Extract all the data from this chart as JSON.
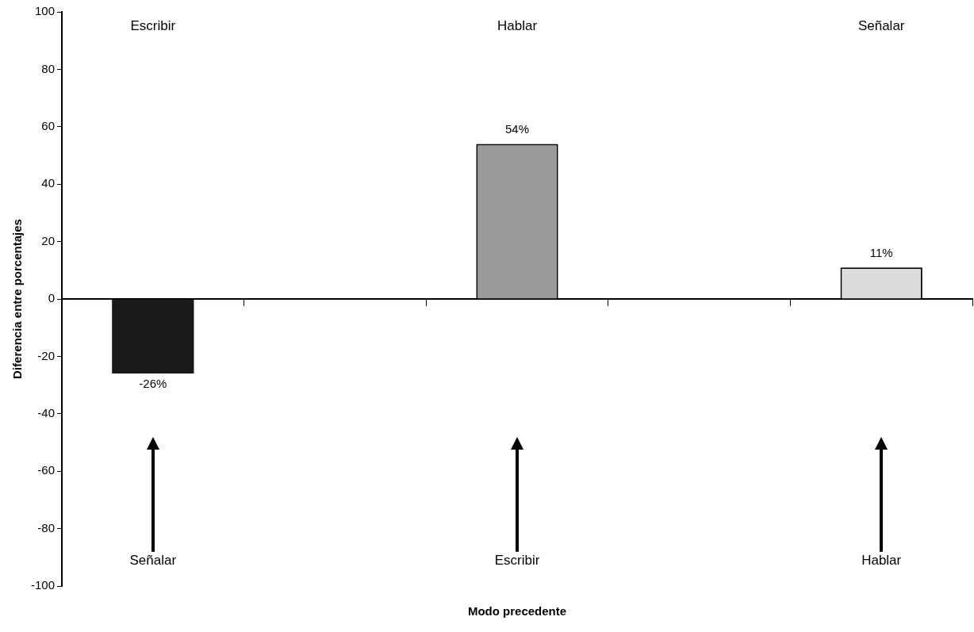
{
  "chart_data": {
    "type": "bar",
    "xlabel": "Modo precedente",
    "ylabel": "Diferencia entre porcentajes",
    "categories": [
      null,
      null,
      null,
      null,
      null
    ],
    "values": [
      -26,
      null,
      54,
      null,
      11
    ],
    "colors": [
      "#1a1a1a",
      "#ffffff",
      "#9a9a9a",
      "#ffffff",
      "#dcdcdc"
    ],
    "value_labels": [
      "-26%",
      null,
      "54%",
      null,
      "11%"
    ],
    "ylim": [
      -100,
      100
    ],
    "yticks": [
      -100,
      -80,
      -60,
      -40,
      -20,
      0,
      20,
      40,
      60,
      80,
      100
    ],
    "legend": false,
    "annotations": [
      "Escribir",
      "Hablar",
      "Señalar",
      "Señalar",
      "Escribir",
      "Hablar"
    ]
  }
}
